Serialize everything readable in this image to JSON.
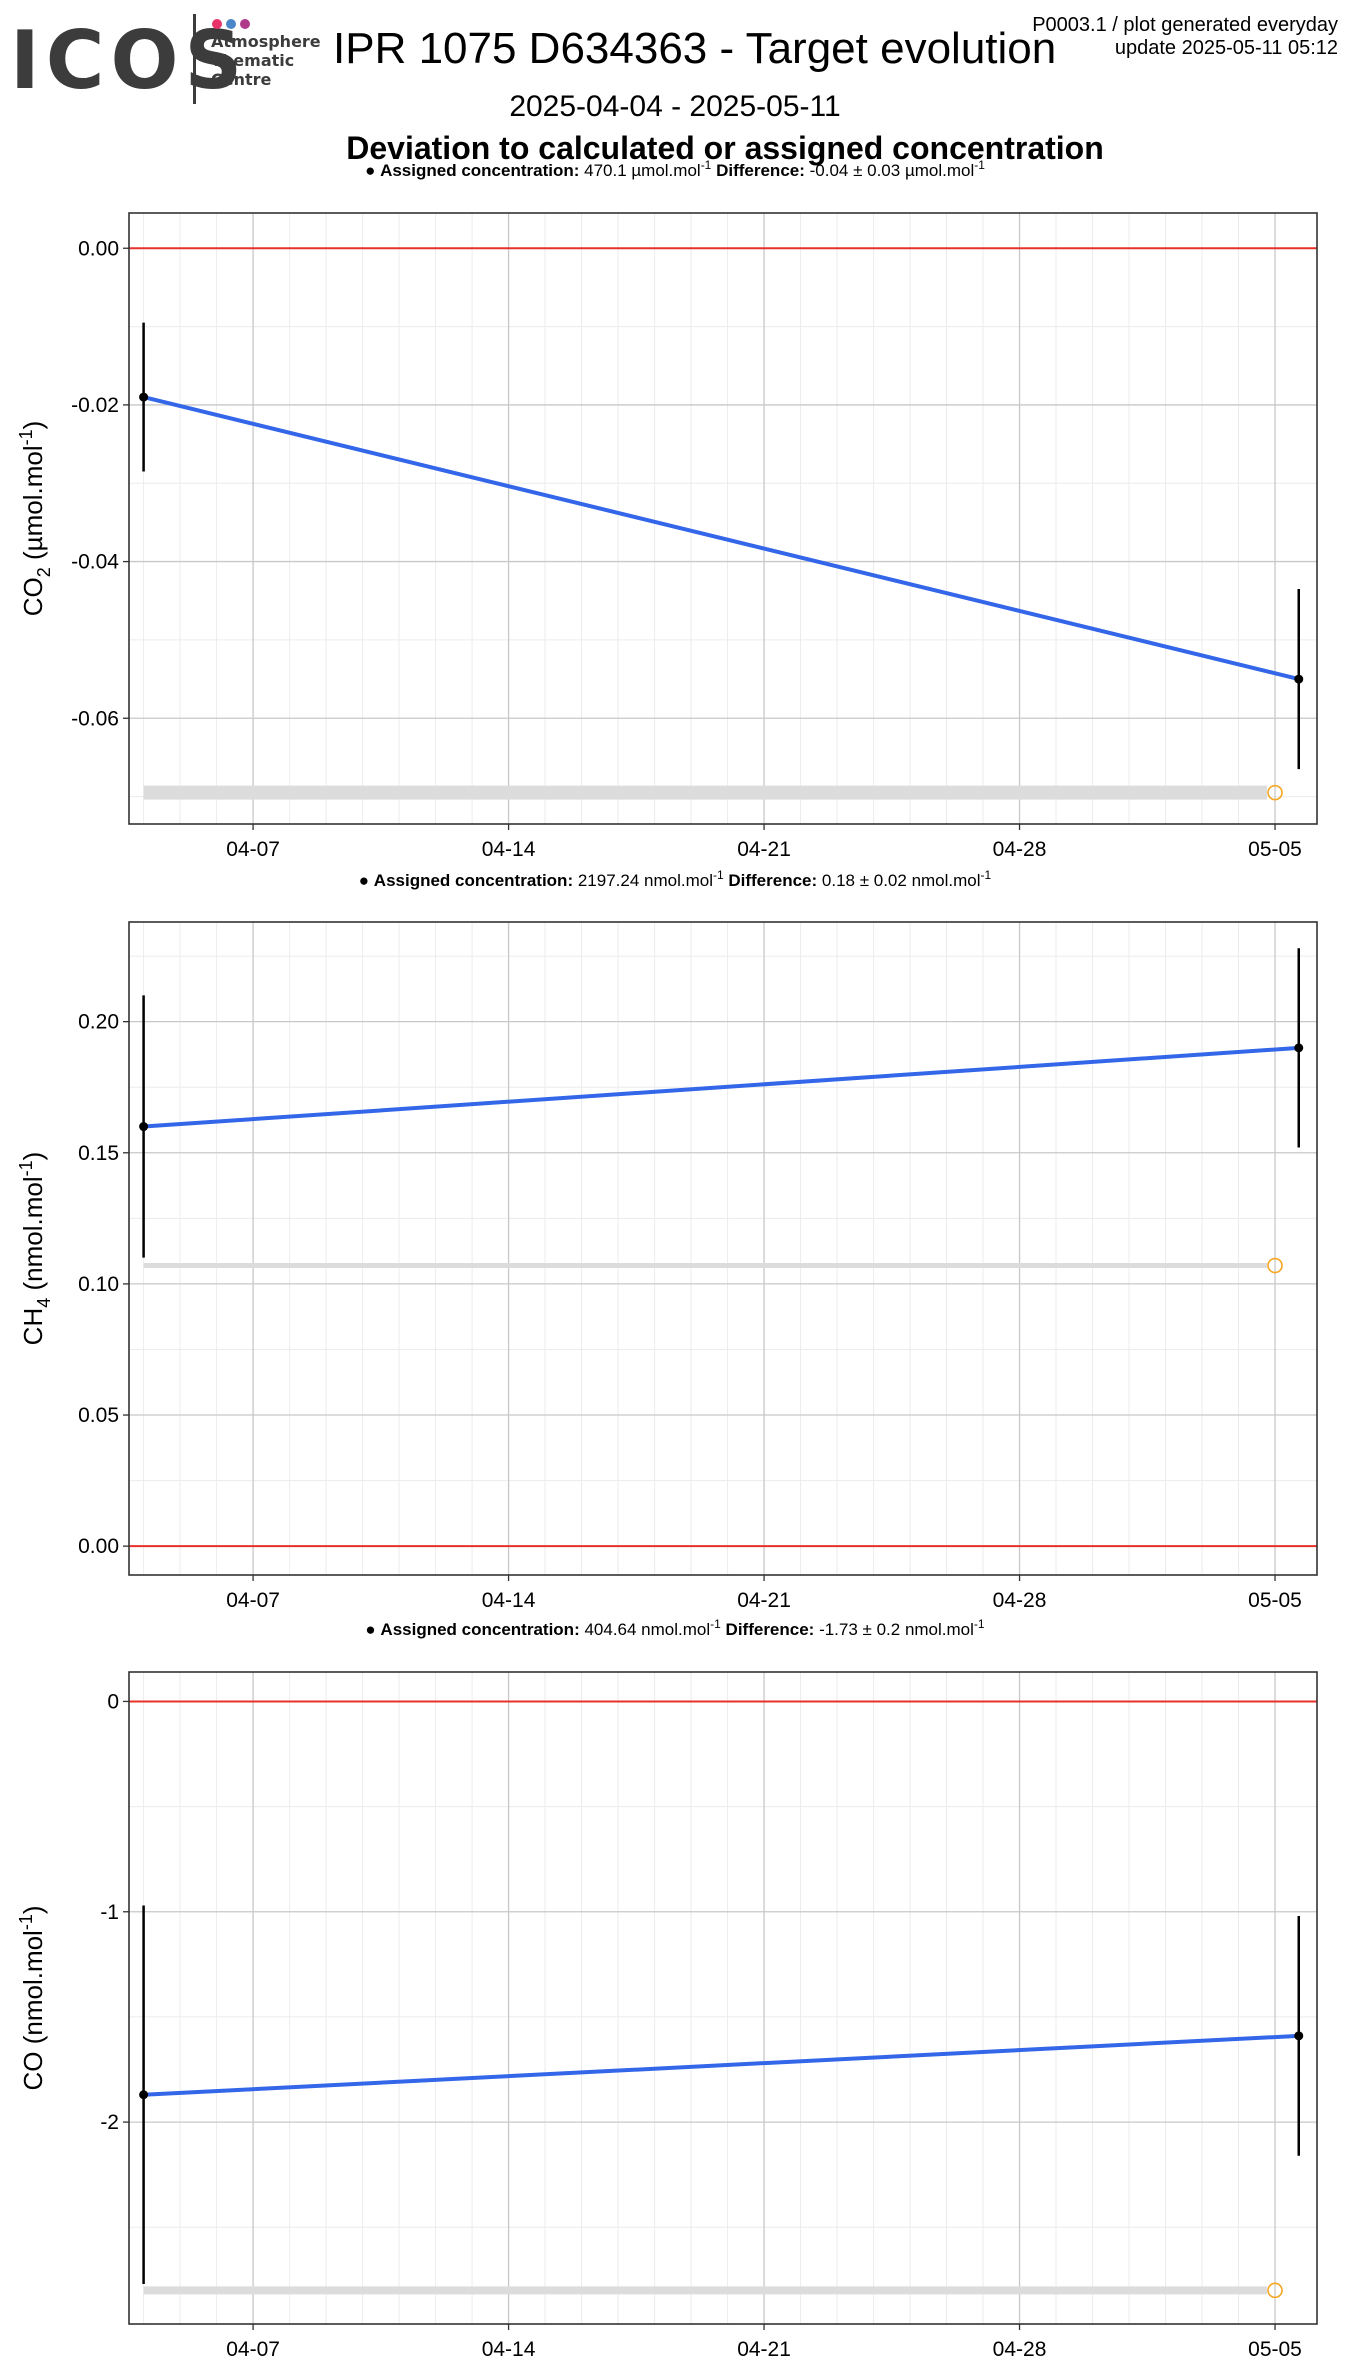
{
  "header": {
    "logo": "ICOS",
    "logo_lines": [
      "Atmosphere",
      "Thematic",
      "Centre"
    ],
    "logo_colors": [
      "#e8336a",
      "#4a86c8",
      "#b03a8a"
    ],
    "title": "IPR 1075 D634363 - Target evolution",
    "gen_line1": "P0003.1 / plot generated everyday",
    "gen_line2": "update  2025-05-11 05:12",
    "date_range": "2025-04-04 - 2025-05-11",
    "subtitle": "Deviation to calculated or assigned concentration"
  },
  "colors": {
    "line": "#3366e8",
    "zero_line": "#e8302a",
    "band": "#dcdcdc",
    "open_marker": "#f5a623",
    "grid_major": "#c8c8c8",
    "grid_minor": "#ececec"
  },
  "chart_data": [
    {
      "type": "line",
      "gas": "CO2",
      "ylabel_main": "CO",
      "ylabel_sub": "2",
      "ylabel_unit": "(µmol.mol",
      "ylabel_sup": "-1",
      "ylabel_close": ")",
      "info": {
        "assigned_label": "Assigned concentration:",
        "assigned_value": "470.1 µmol.mol",
        "assigned_sup": "-1",
        "difference_label": "Difference:",
        "difference_value": "-0.04 ± 0.03 µmol.mol",
        "difference_sup": "-1"
      },
      "x": [
        "2025-04-04",
        "2025-05-05"
      ],
      "y": [
        -0.019,
        -0.055
      ],
      "error": [
        0.0095,
        0.0115
      ],
      "open_marker": {
        "x": "2025-05-05",
        "y": -0.0695
      },
      "band_y": -0.0695,
      "zero_line": 0,
      "ylim": [
        -0.0735,
        0.0045
      ],
      "yticks": [
        0.0,
        -0.02,
        -0.04,
        -0.06
      ],
      "ytick_labels": [
        "0.00",
        "-0.02",
        "-0.04",
        "-0.06"
      ],
      "xticks": [
        "04-07",
        "04-14",
        "04-21",
        "04-28",
        "05-05"
      ],
      "grid": true
    },
    {
      "type": "line",
      "gas": "CH4",
      "ylabel_main": "CH",
      "ylabel_sub": "4",
      "ylabel_unit": "(nmol.mol",
      "ylabel_sup": "-1",
      "ylabel_close": ")",
      "info": {
        "assigned_label": "Assigned concentration:",
        "assigned_value": "2197.24 nmol.mol",
        "assigned_sup": "-1",
        "difference_label": "Difference:",
        "difference_value": "0.18 ± 0.02 nmol.mol",
        "difference_sup": "-1"
      },
      "x": [
        "2025-04-04",
        "2025-05-05"
      ],
      "y": [
        0.16,
        0.19
      ],
      "error": [
        0.05,
        0.038
      ],
      "open_marker": {
        "x": "2025-05-05",
        "y": 0.107
      },
      "band_y": 0.107,
      "zero_line": 0,
      "ylim": [
        -0.011,
        0.238
      ],
      "yticks": [
        0.0,
        0.05,
        0.1,
        0.15,
        0.2
      ],
      "ytick_labels": [
        "0.00",
        "0.05",
        "0.10",
        "0.15",
        "0.20"
      ],
      "xticks": [
        "04-07",
        "04-14",
        "04-21",
        "04-28",
        "05-05"
      ],
      "grid": true
    },
    {
      "type": "line",
      "gas": "CO",
      "ylabel_main": "CO",
      "ylabel_sub": "",
      "ylabel_unit": "(nmol.mol",
      "ylabel_sup": "-1",
      "ylabel_close": ")",
      "info": {
        "assigned_label": "Assigned concentration:",
        "assigned_value": "404.64 nmol.mol",
        "assigned_sup": "-1",
        "difference_label": "Difference:",
        "difference_value": "-1.73 ± 0.2 nmol.mol",
        "difference_sup": "-1"
      },
      "x": [
        "2025-04-04",
        "2025-05-05"
      ],
      "y": [
        -1.87,
        -1.59
      ],
      "error": [
        0.9,
        0.57
      ],
      "open_marker": {
        "x": "2025-05-05",
        "y": -2.8
      },
      "band_y": -2.8,
      "zero_line": 0,
      "ylim": [
        -2.96,
        0.14
      ],
      "yticks": [
        0,
        -1,
        -2
      ],
      "ytick_labels": [
        "0",
        "-1",
        "-2"
      ],
      "xticks": [
        "04-07",
        "04-14",
        "04-21",
        "04-28",
        "05-05"
      ],
      "grid": true
    }
  ]
}
